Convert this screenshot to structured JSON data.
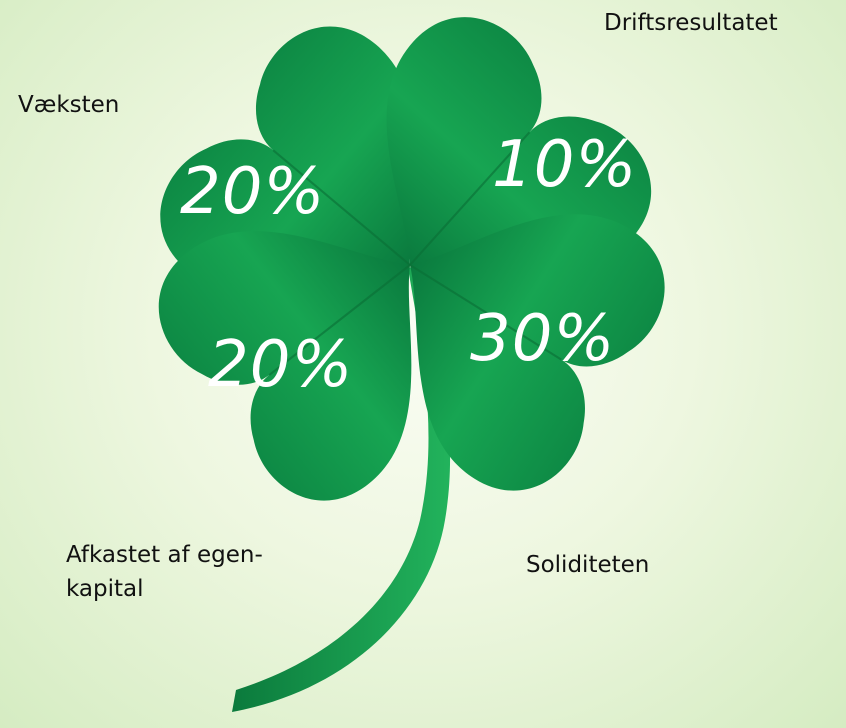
{
  "leaves": [
    {
      "label": "Væksten",
      "value": "20%"
    },
    {
      "label": "Driftsresultatet",
      "value": "10%"
    },
    {
      "label": "Afkastet af egen-\nkapital",
      "value": "20%"
    },
    {
      "label": "Soliditeten",
      "value": "30%"
    }
  ]
}
